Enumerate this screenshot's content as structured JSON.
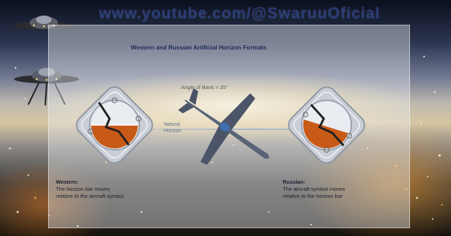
{
  "watermark": "www.youtube.com/@SwaruuOficial",
  "slide": {
    "title": "Western and Russian Artificial Horizon Formats",
    "angle_label": "Angle of Bank = 35°",
    "natural_horizon_label": "Natural Horizon",
    "western": {
      "title": "Western:",
      "line1": "The horizon bar moves",
      "line2": "relative to the aircraft symbol"
    },
    "russian": {
      "title": "Russian:",
      "line1": "The aircraft symbol moves",
      "line2": "relative to the horizon bar"
    }
  },
  "colors": {
    "panel": "#e9ecee",
    "title": "#1c2a57",
    "indicator_fill": "#c85a18",
    "watermark": "#2846a0"
  },
  "icons": {
    "ufo_top": "ufo-icon",
    "ufo_lander": "ufo-lander-icon",
    "airplane": "airplane-icon"
  }
}
